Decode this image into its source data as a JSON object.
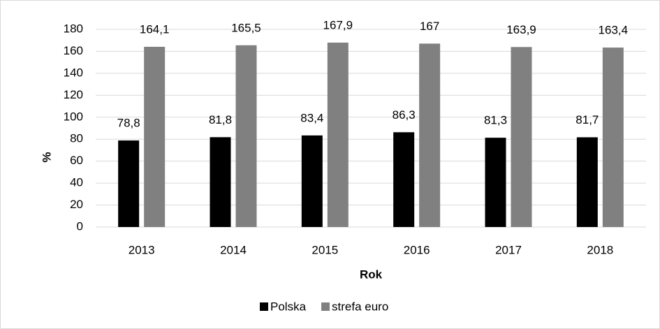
{
  "chart_data": {
    "type": "bar",
    "xlabel": "Rok",
    "ylabel": "%",
    "categories": [
      "2013",
      "2014",
      "2015",
      "2016",
      "2017",
      "2018"
    ],
    "series": [
      {
        "name": "Polska",
        "color": "#000000",
        "values": [
          78.8,
          81.8,
          83.4,
          86.3,
          81.3,
          81.7
        ],
        "value_labels": [
          "78,8",
          "81,8",
          "83,4",
          "86,3",
          "81,3",
          "81,7"
        ]
      },
      {
        "name": "strefa euro",
        "color": "#808080",
        "values": [
          164.1,
          165.5,
          167.9,
          167,
          163.9,
          163.4
        ],
        "value_labels": [
          "164,1",
          "165,5",
          "167,9",
          "167",
          "163,9",
          "163,4"
        ]
      }
    ],
    "ylim": [
      0,
      180
    ],
    "yticks": [
      0,
      20,
      40,
      60,
      80,
      100,
      120,
      140,
      160,
      180
    ],
    "grid": true,
    "legend": "bottom"
  }
}
